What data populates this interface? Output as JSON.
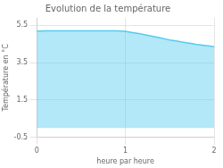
{
  "chart_data": {
    "type": "area",
    "title": "Evolution de la température",
    "xlabel": "heure par heure",
    "ylabel": "Température en °C",
    "x": [
      0.0,
      0.05,
      0.1,
      0.15,
      0.2,
      0.25,
      0.3,
      0.35,
      0.4,
      0.45,
      0.5,
      0.55,
      0.6,
      0.65,
      0.7,
      0.75,
      0.8,
      0.85,
      0.9,
      0.95,
      1.0,
      1.05,
      1.1,
      1.15,
      1.2,
      1.25,
      1.3,
      1.35,
      1.4,
      1.45,
      1.5,
      1.55,
      1.6,
      1.65,
      1.7,
      1.75,
      1.8,
      1.85,
      1.9,
      1.95,
      2.0
    ],
    "values": [
      5.2,
      5.2,
      5.21,
      5.21,
      5.21,
      5.21,
      5.21,
      5.21,
      5.21,
      5.21,
      5.21,
      5.21,
      5.21,
      5.21,
      5.21,
      5.21,
      5.21,
      5.21,
      5.21,
      5.2,
      5.18,
      5.14,
      5.1,
      5.06,
      5.02,
      4.97,
      4.92,
      4.87,
      4.82,
      4.77,
      4.72,
      4.68,
      4.64,
      4.6,
      4.56,
      4.52,
      4.48,
      4.45,
      4.42,
      4.39,
      4.36
    ],
    "color": "#55ccee",
    "xlim": [
      0,
      2.0
    ],
    "ylim": [
      -0.5,
      5.9
    ],
    "xticks": [
      0,
      1,
      2
    ],
    "yticks": [
      -0.5,
      1.5,
      3.5,
      5.5
    ],
    "grid": true
  }
}
